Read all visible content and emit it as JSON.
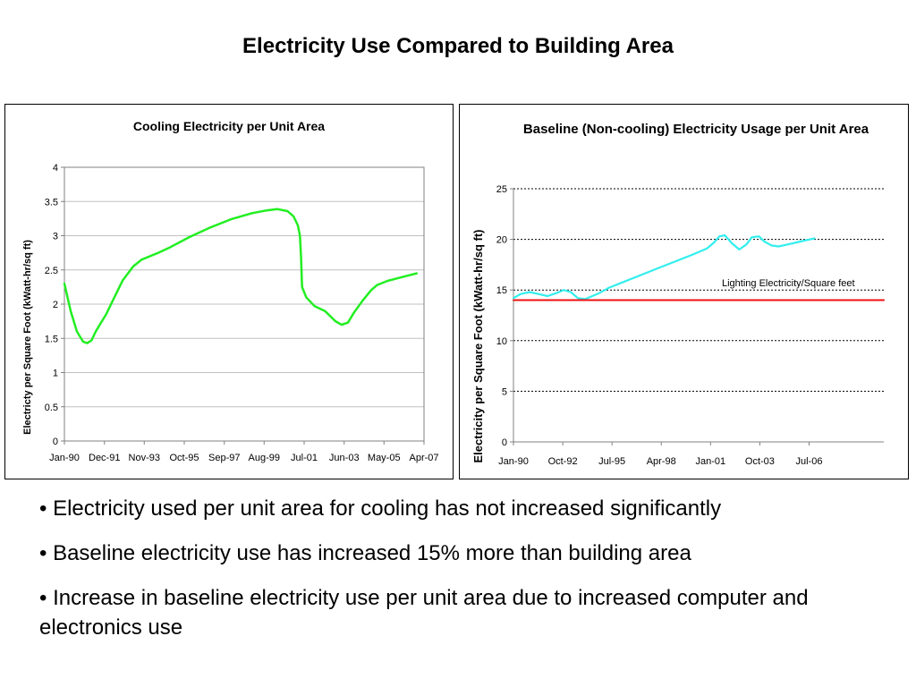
{
  "slide": {
    "title": "Electricity Use Compared to Building Area",
    "bullets": [
      "• Electricity used per unit area for cooling has not increased significantly",
      "• Baseline electricity use has increased 15% more than building area",
      "• Increase in baseline electricity use per unit area due to increased computer and electronics use"
    ]
  },
  "chart_data": [
    {
      "type": "line",
      "title": "Cooling Electricity per Unit Area",
      "xlabel": "",
      "ylabel": "Electricty per Square Foot (kWatt-hr/sq ft)",
      "x_range": [
        1990.0,
        2007.25
      ],
      "ylim": [
        0,
        4
      ],
      "y_ticks": [
        "0",
        "0.5",
        "1",
        "1.5",
        "2",
        "2.5",
        "3",
        "3.5",
        "4"
      ],
      "x_ticks": [
        {
          "label": "Jan-90",
          "x": 1990.0
        },
        {
          "label": "Dec-91",
          "x": 1991.92
        },
        {
          "label": "Nov-93",
          "x": 1993.83
        },
        {
          "label": "Oct-95",
          "x": 1995.75
        },
        {
          "label": "Sep-97",
          "x": 1997.67
        },
        {
          "label": "Aug-99",
          "x": 1999.58
        },
        {
          "label": "Jul-01",
          "x": 2001.5
        },
        {
          "label": "Jun-03",
          "x": 2003.42
        },
        {
          "label": "May-05",
          "x": 2005.33
        },
        {
          "label": "Apr-07",
          "x": 2007.25
        }
      ],
      "grid": true,
      "colors": {
        "line": "#22ee22",
        "grid": "#c0c0c0"
      },
      "series": [
        {
          "x": [
            1990.0,
            1990.3,
            1990.6,
            1990.9,
            1991.1,
            1991.3,
            1991.5,
            1991.8,
            1992.0,
            1992.4,
            1992.8,
            1993.3,
            1993.7,
            1994.5,
            1995.0,
            1996.0,
            1997.0,
            1998.0,
            1999.0,
            1999.7,
            2000.2,
            2000.7,
            2001.0,
            2001.2,
            2001.3,
            2001.35,
            2001.4,
            2001.6,
            2002.0,
            2002.5,
            2003.0,
            2003.3,
            2003.6,
            2003.9,
            2004.3,
            2004.7,
            2005.0,
            2005.5,
            2006.0,
            2006.5,
            2006.9
          ],
          "values": [
            2.3,
            1.9,
            1.6,
            1.45,
            1.43,
            1.47,
            1.6,
            1.75,
            1.85,
            2.1,
            2.35,
            2.55,
            2.65,
            2.75,
            2.82,
            2.98,
            3.12,
            3.24,
            3.33,
            3.37,
            3.39,
            3.36,
            3.28,
            3.15,
            3.0,
            2.7,
            2.25,
            2.1,
            1.97,
            1.9,
            1.75,
            1.7,
            1.73,
            1.88,
            2.05,
            2.2,
            2.28,
            2.34,
            2.38,
            2.42,
            2.45
          ]
        }
      ]
    },
    {
      "type": "line",
      "title": "Baseline (Non-cooling) Electricity Usage per Unit Area",
      "xlabel": "",
      "ylabel": "Electricity per Square Foot (kWatt-hr/sq ft)",
      "x_range": [
        1990.0,
        2010.67
      ],
      "ylim": [
        0,
        25
      ],
      "y_ticks": [
        "0",
        "5",
        "10",
        "15",
        "20",
        "25"
      ],
      "x_ticks": [
        {
          "label": "Jan-90",
          "x": 1990.0
        },
        {
          "label": "Oct-92",
          "x": 1992.75
        },
        {
          "label": "Jul-95",
          "x": 1995.5
        },
        {
          "label": "Apr-98",
          "x": 1998.25
        },
        {
          "label": "Jan-01",
          "x": 2001.0
        },
        {
          "label": "Oct-03",
          "x": 2003.75
        },
        {
          "label": "Jul-06",
          "x": 2006.5
        }
      ],
      "grid": true,
      "colors": {
        "line": "#33eeee",
        "reference": "#ee1111",
        "grid": "#000000"
      },
      "series": [
        {
          "x": [
            1990.0,
            1990.4,
            1990.9,
            1991.4,
            1991.9,
            1992.4,
            1992.8,
            1993.2,
            1993.6,
            1994.0,
            1994.4,
            1994.8,
            1995.3,
            1996.0,
            1997.0,
            1998.0,
            1999.0,
            2000.0,
            2000.8,
            2001.2,
            2001.5,
            2001.8,
            2002.2,
            2002.6,
            2003.0,
            2003.3,
            2003.7,
            2004.0,
            2004.4,
            2004.8,
            2005.3,
            2005.8,
            2006.3,
            2006.8
          ],
          "values": [
            14.2,
            14.6,
            14.8,
            14.6,
            14.4,
            14.7,
            15.0,
            14.8,
            14.2,
            14.1,
            14.4,
            14.7,
            15.2,
            15.7,
            16.4,
            17.1,
            17.8,
            18.5,
            19.1,
            19.7,
            20.3,
            20.4,
            19.6,
            19.0,
            19.5,
            20.2,
            20.3,
            19.8,
            19.4,
            19.3,
            19.5,
            19.7,
            19.9,
            20.1
          ]
        },
        {
          "name": "Lighting Electricity/Square feet",
          "x": [
            1990.0,
            2010.67
          ],
          "values": [
            14.0,
            14.0
          ]
        }
      ]
    }
  ]
}
